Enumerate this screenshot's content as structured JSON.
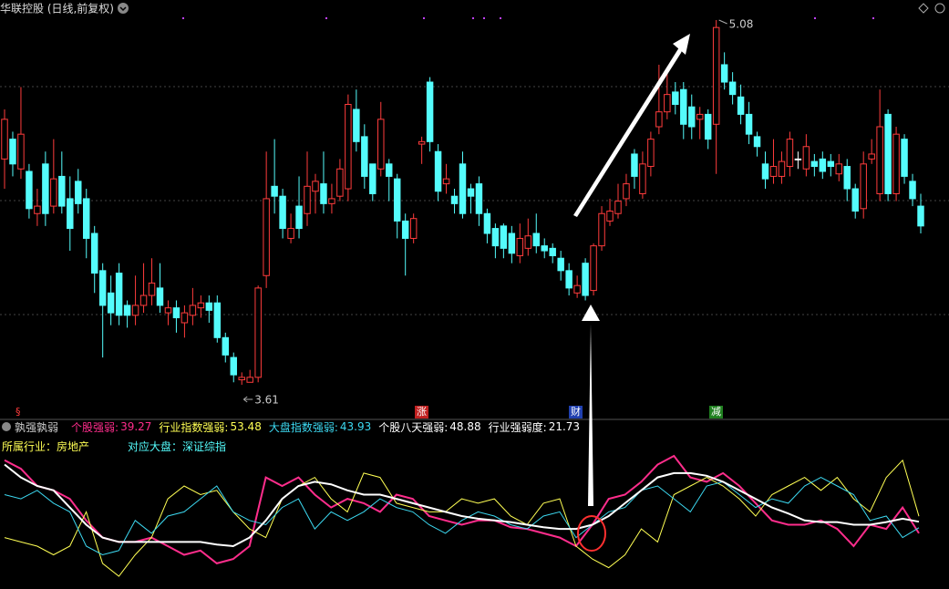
{
  "chart_data": [
    {
      "type": "candlestick",
      "title": "华联控股 (日线,前复权)",
      "up_color": "#ff3c3c",
      "down_color": "#54fcfc",
      "max_label": 5.08,
      "min_label": 3.61,
      "events": [
        "§",
        "涨",
        "财",
        "减"
      ],
      "ohlc": [
        [
          4.52,
          4.72,
          4.4,
          4.68
        ],
        [
          4.6,
          4.63,
          4.45,
          4.5
        ],
        [
          4.48,
          4.81,
          4.44,
          4.62
        ],
        [
          4.47,
          4.5,
          4.28,
          4.32
        ],
        [
          4.3,
          4.4,
          4.25,
          4.33
        ],
        [
          4.5,
          4.55,
          4.25,
          4.3
        ],
        [
          4.33,
          4.6,
          4.3,
          4.44
        ],
        [
          4.45,
          4.55,
          4.3,
          4.33
        ],
        [
          4.36,
          4.45,
          4.15,
          4.24
        ],
        [
          4.43,
          4.48,
          4.3,
          4.34
        ],
        [
          4.36,
          4.4,
          4.12,
          4.2
        ],
        [
          4.22,
          4.25,
          3.98,
          4.06
        ],
        [
          4.07,
          4.1,
          3.72,
          3.93
        ],
        [
          3.98,
          4.05,
          3.85,
          3.9
        ],
        [
          4.06,
          4.1,
          3.85,
          3.89
        ],
        [
          3.93,
          3.95,
          3.84,
          3.89
        ],
        [
          3.89,
          4.05,
          3.85,
          3.93
        ],
        [
          3.93,
          4.1,
          3.9,
          3.97
        ],
        [
          3.97,
          4.12,
          3.93,
          4.02
        ],
        [
          4.0,
          4.1,
          3.9,
          3.93
        ],
        [
          3.9,
          3.95,
          3.85,
          3.92
        ],
        [
          3.92,
          3.95,
          3.82,
          3.88
        ],
        [
          3.86,
          3.93,
          3.8,
          3.9
        ],
        [
          3.89,
          4.0,
          3.85,
          3.93
        ],
        [
          3.92,
          3.97,
          3.88,
          3.94
        ],
        [
          3.94,
          3.97,
          3.86,
          3.91
        ],
        [
          3.94,
          3.97,
          3.78,
          3.8
        ],
        [
          3.8,
          3.82,
          3.7,
          3.73
        ],
        [
          3.72,
          3.74,
          3.62,
          3.65
        ],
        [
          3.63,
          3.66,
          3.61,
          3.64
        ],
        [
          3.62,
          3.67,
          3.62,
          3.64
        ],
        [
          3.64,
          4.01,
          3.62,
          4.0
        ],
        [
          4.05,
          4.55,
          4.0,
          4.36
        ],
        [
          4.41,
          4.6,
          4.3,
          4.37
        ],
        [
          4.37,
          4.4,
          4.2,
          4.24
        ],
        [
          4.2,
          4.3,
          4.18,
          4.24
        ],
        [
          4.33,
          4.45,
          4.2,
          4.24
        ],
        [
          4.3,
          4.55,
          4.25,
          4.41
        ],
        [
          4.39,
          4.46,
          4.3,
          4.43
        ],
        [
          4.42,
          4.55,
          4.3,
          4.34
        ],
        [
          4.34,
          4.42,
          4.3,
          4.36
        ],
        [
          4.37,
          4.52,
          4.35,
          4.48
        ],
        [
          4.4,
          4.78,
          4.35,
          4.74
        ],
        [
          4.72,
          4.8,
          4.55,
          4.59
        ],
        [
          4.61,
          4.66,
          4.4,
          4.45
        ],
        [
          4.5,
          4.5,
          4.35,
          4.38
        ],
        [
          4.48,
          4.75,
          4.45,
          4.68
        ],
        [
          4.5,
          4.52,
          4.35,
          4.45
        ],
        [
          4.44,
          4.46,
          4.2,
          4.27
        ],
        [
          4.27,
          4.3,
          4.05,
          4.2
        ],
        [
          4.2,
          4.3,
          4.18,
          4.28
        ],
        [
          4.58,
          4.61,
          4.5,
          4.59
        ],
        [
          4.83,
          4.85,
          4.55,
          4.59
        ],
        [
          4.55,
          4.58,
          4.35,
          4.39
        ],
        [
          4.42,
          4.5,
          4.38,
          4.44
        ],
        [
          4.37,
          4.4,
          4.3,
          4.34
        ],
        [
          4.5,
          4.55,
          4.28,
          4.3
        ],
        [
          4.4,
          4.42,
          4.3,
          4.37
        ],
        [
          4.42,
          4.45,
          4.25,
          4.3
        ],
        [
          4.3,
          4.32,
          4.18,
          4.22
        ],
        [
          4.24,
          4.26,
          4.12,
          4.17
        ],
        [
          4.25,
          4.26,
          4.12,
          4.16
        ],
        [
          4.22,
          4.25,
          4.1,
          4.14
        ],
        [
          4.13,
          4.26,
          4.1,
          4.2
        ],
        [
          4.16,
          4.28,
          4.13,
          4.21
        ],
        [
          4.22,
          4.3,
          4.14,
          4.17
        ],
        [
          4.17,
          4.2,
          4.12,
          4.15
        ],
        [
          4.16,
          4.18,
          4.1,
          4.13
        ],
        [
          4.12,
          4.15,
          4.03,
          4.07
        ],
        [
          4.07,
          4.1,
          3.97,
          4.0
        ],
        [
          3.98,
          4.05,
          3.96,
          4.01
        ],
        [
          4.1,
          4.12,
          3.95,
          3.97
        ],
        [
          3.99,
          4.18,
          3.97,
          4.17
        ],
        [
          4.17,
          4.33,
          4.15,
          4.3
        ],
        [
          4.27,
          4.36,
          4.25,
          4.31
        ],
        [
          4.3,
          4.42,
          4.28,
          4.35
        ],
        [
          4.36,
          4.46,
          4.33,
          4.42
        ],
        [
          4.54,
          4.56,
          4.4,
          4.45
        ],
        [
          4.38,
          4.55,
          4.36,
          4.5
        ],
        [
          4.49,
          4.63,
          4.45,
          4.6
        ],
        [
          4.65,
          4.9,
          4.62,
          4.71
        ],
        [
          4.71,
          4.88,
          4.68,
          4.78
        ],
        [
          4.79,
          4.83,
          4.7,
          4.74
        ],
        [
          4.8,
          4.83,
          4.6,
          4.66
        ],
        [
          4.73,
          4.78,
          4.6,
          4.65
        ],
        [
          4.68,
          4.73,
          4.6,
          4.7
        ],
        [
          4.7,
          4.72,
          4.56,
          4.6
        ],
        [
          4.66,
          5.08,
          4.46,
          5.05
        ],
        [
          4.9,
          4.95,
          4.8,
          4.83
        ],
        [
          4.83,
          4.87,
          4.74,
          4.78
        ],
        [
          4.77,
          4.82,
          4.66,
          4.7
        ],
        [
          4.7,
          4.75,
          4.58,
          4.62
        ],
        [
          4.61,
          4.63,
          4.53,
          4.57
        ],
        [
          4.5,
          4.55,
          4.4,
          4.44
        ],
        [
          4.45,
          4.6,
          4.42,
          4.49
        ],
        [
          4.45,
          4.55,
          4.42,
          4.51
        ],
        [
          4.49,
          4.63,
          4.45,
          4.6
        ],
        [
          4.52,
          4.55,
          4.48,
          4.52
        ],
        [
          4.48,
          4.62,
          4.45,
          4.57
        ],
        [
          4.51,
          4.54,
          4.45,
          4.49
        ],
        [
          4.52,
          4.55,
          4.44,
          4.47
        ],
        [
          4.51,
          4.54,
          4.45,
          4.49
        ],
        [
          4.46,
          4.54,
          4.43,
          4.5
        ],
        [
          4.49,
          4.52,
          4.35,
          4.4
        ],
        [
          4.4,
          4.42,
          4.28,
          4.31
        ],
        [
          4.32,
          4.55,
          4.28,
          4.5
        ],
        [
          4.52,
          4.6,
          4.5,
          4.54
        ],
        [
          4.38,
          4.8,
          4.35,
          4.65
        ],
        [
          4.7,
          4.72,
          4.35,
          4.38
        ],
        [
          4.38,
          4.65,
          4.35,
          4.62
        ],
        [
          4.6,
          4.62,
          4.42,
          4.45
        ],
        [
          4.43,
          4.46,
          4.33,
          4.36
        ],
        [
          4.33,
          4.38,
          4.22,
          4.25
        ]
      ]
    },
    {
      "type": "line",
      "title": "孰强孰弱",
      "notes": [
        "所属行业：房地产",
        "对应大盘：深证综指"
      ],
      "note_colors": [
        "#ffff54",
        "#54fcfc"
      ],
      "series": [
        {
          "name": "个股强弱:",
          "color": "#ff2d8c",
          "latest": 39.27,
          "values": [
            100,
            92.9,
            78.6,
            75,
            67.9,
            50,
            35.7,
            32.1,
            32.1,
            35.7,
            28.6,
            21.4,
            25,
            14.3,
            17.9,
            28.6,
            85.7,
            78.6,
            85.7,
            71.4,
            60.7,
            67.9,
            64.3,
            57.1,
            71.4,
            67.9,
            53.6,
            50,
            46.4,
            50,
            50,
            44.3,
            42.9,
            39.3,
            35.7,
            28.6,
            46.4,
            67.9,
            71.4,
            82.1,
            96.4,
            103.6,
            85.7,
            82.1,
            89.3,
            78.6,
            64.3,
            50,
            46.4,
            46.4,
            50,
            42.9,
            28.6,
            46.4,
            42.9,
            60.7,
            39.27
          ]
        },
        {
          "name": "行业指数强弱:",
          "color": "#ffff54",
          "latest": 53.48,
          "values": [
            35.7,
            32.1,
            28.6,
            21.4,
            28.6,
            57.1,
            14.3,
            3.6,
            21.4,
            35.7,
            67.9,
            78.6,
            71.4,
            75,
            57.1,
            42.9,
            35.7,
            67.9,
            78.6,
            85.7,
            67.9,
            57.1,
            89.3,
            85.7,
            64.3,
            60.7,
            57.1,
            57.1,
            67.9,
            64.3,
            67.9,
            53.6,
            46.4,
            64.3,
            67.9,
            28.6,
            17.9,
            10.7,
            21.4,
            42.9,
            32.1,
            71.4,
            78.6,
            85.7,
            78.6,
            67.9,
            53.6,
            71.4,
            78.6,
            85.7,
            75,
            85.7,
            67.9,
            57.1,
            85.7,
            100,
            53.48
          ]
        },
        {
          "name": "大盘指数强弱:",
          "color": "#3cd8f0",
          "latest": 43.93,
          "values": [
            71.4,
            67.9,
            75,
            64.3,
            57.1,
            28.6,
            21.4,
            25,
            50,
            39.3,
            53.6,
            57.1,
            67.9,
            78.6,
            57.1,
            50,
            46.4,
            60.7,
            67.9,
            42.9,
            57.1,
            50,
            57.1,
            67.9,
            60.7,
            57.1,
            46.4,
            39.3,
            50,
            57.1,
            53.6,
            46.4,
            42.9,
            53.6,
            57.1,
            35.7,
            46.4,
            57.1,
            60.7,
            75,
            78.6,
            67.9,
            57.1,
            78.6,
            82.1,
            71.4,
            60.7,
            67.9,
            64.3,
            78.6,
            85.7,
            78.6,
            71.4,
            50,
            53.6,
            35.7,
            43.93
          ]
        },
        {
          "name": "个股八天强弱:",
          "color": "#ffffff",
          "latest": 48.88,
          "values": [
            96.4,
            85.7,
            78.6,
            75,
            60.7,
            46.4,
            35.7,
            32.1,
            32.1,
            32.1,
            32.1,
            32.1,
            32.1,
            30,
            28.6,
            35.7,
            50,
            67.9,
            78.6,
            82.1,
            80,
            75,
            71.4,
            71.4,
            67.9,
            64.3,
            60.7,
            57.1,
            53.6,
            51.4,
            50,
            48.6,
            46.4,
            44.3,
            42.9,
            42.9,
            46.4,
            53.6,
            64.3,
            75,
            85.7,
            89.3,
            89.3,
            87.1,
            82.1,
            75,
            67.9,
            60.7,
            55.7,
            50,
            48.6,
            48.6,
            46.4,
            46.4,
            48.6,
            51.4,
            48.88
          ]
        },
        {
          "name": "行业强弱度:",
          "color": "#ffffff",
          "latest": 21.73
        }
      ]
    }
  ]
}
